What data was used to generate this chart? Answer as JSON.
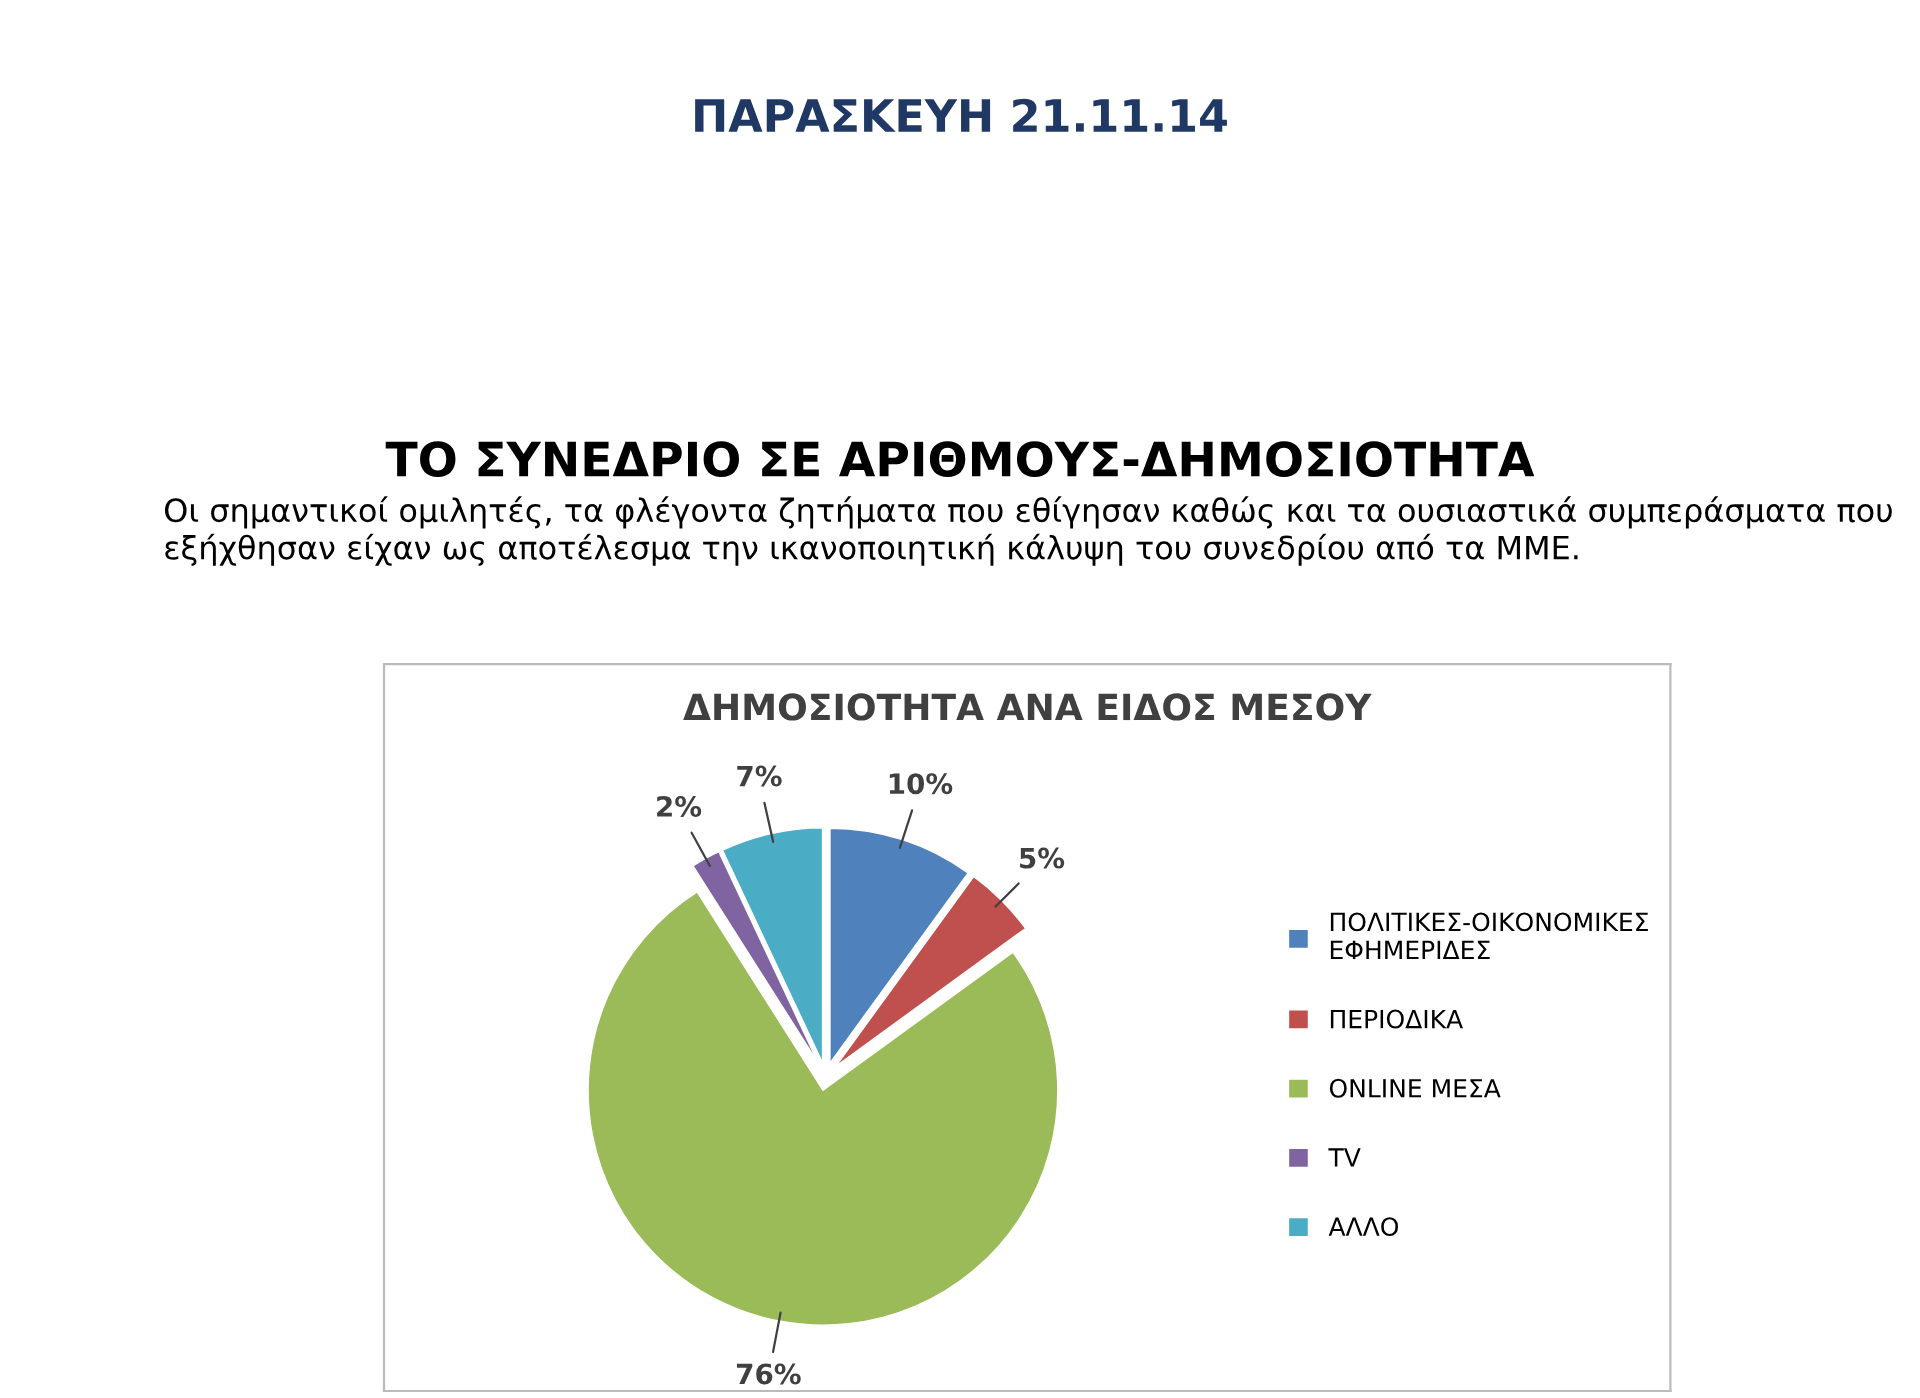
{
  "chart_data": {
    "type": "pie",
    "title": "ΔΗΜΟΣΙΟΤΗΤΑ ΑΝΑ ΕΙΔΟΣ ΜΕΣΟΥ",
    "annotations": [
      "ΠΑΡΑΣΚΕΥΗ 21.11.14",
      "ΤΟ ΣΥΝΕΔΡΙΟ ΣΕ ΑΡΙΘΜΟΥΣ-ΔΗΜΟΣΙΟΤΗΤΑ",
      "Οι σημαντικοί ομιλητές, τα φλέγοντα ζητήματα που εθίγησαν καθώς και τα ουσιαστικά συμπεράσματα που εξήχθησαν είχαν ως αποτέλεσμα την ικανοποιητική κάλυψη του συνεδρίου από τα ΜΜΕ."
    ],
    "categories": [
      "ΠΟΛΙΤΙΚΕΣ-ΟΙΚΟΝΟΜΙΚΕΣ ΕΦΗΜΕΡΙΔΕΣ",
      "ΠΕΡΙΟΔΙΚΑ",
      "ONLINE ΜΕΣΑ",
      "TV",
      "ΑΛΛΟ"
    ],
    "values": [
      10,
      5,
      76,
      2,
      7
    ],
    "value_labels": [
      "10%",
      "5%",
      "76%",
      "2%",
      "7%"
    ],
    "colors": [
      "#4f81bd",
      "#c0504d",
      "#9bbb59",
      "#8064a2",
      "#4bacc6"
    ],
    "legend": "right"
  }
}
